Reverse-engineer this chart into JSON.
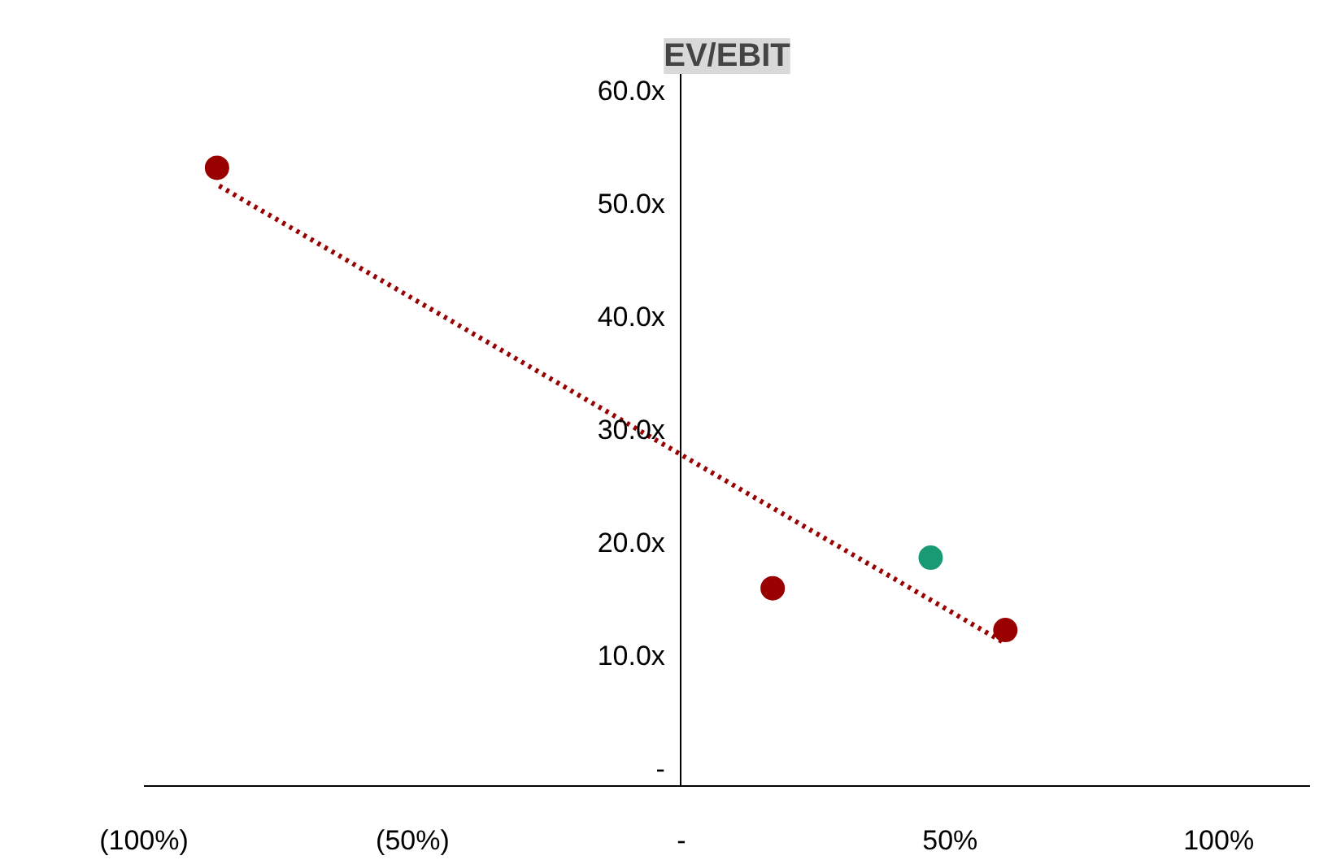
{
  "chart_data": {
    "type": "scatter",
    "title": "EV/EBIT",
    "xlim": [
      -100,
      117
    ],
    "ylim": [
      -1.5,
      61.5
    ],
    "xticks": [
      {
        "value": -100,
        "label": "(100%)"
      },
      {
        "value": -50,
        "label": "(50%)"
      },
      {
        "value": 0,
        "label": "-"
      },
      {
        "value": 50,
        "label": "50%"
      },
      {
        "value": 100,
        "label": "100%"
      }
    ],
    "yticks": [
      {
        "value": 0,
        "label": "-"
      },
      {
        "value": 10,
        "label": "10.0x"
      },
      {
        "value": 20,
        "label": "20.0x"
      },
      {
        "value": 30,
        "label": "30.0x"
      },
      {
        "value": 40,
        "label": "40.0x"
      },
      {
        "value": 50,
        "label": "50.0x"
      },
      {
        "value": 60,
        "label": "60.0x"
      }
    ],
    "grid": false,
    "marker": "circle",
    "series": [
      {
        "color": "#990000",
        "x": [
          -86.4,
          17,
          60.3
        ],
        "values": [
          53.2,
          16,
          12.3
        ]
      },
      {
        "color": "#1a9a74",
        "x": [
          46.4
        ],
        "values": [
          18.7
        ]
      },
      {
        "type": "line",
        "line_style": "dotted",
        "marker": "none",
        "color": "#990000",
        "x": [
          -86,
          60
        ],
        "values": [
          51.6,
          11.2
        ]
      }
    ]
  }
}
